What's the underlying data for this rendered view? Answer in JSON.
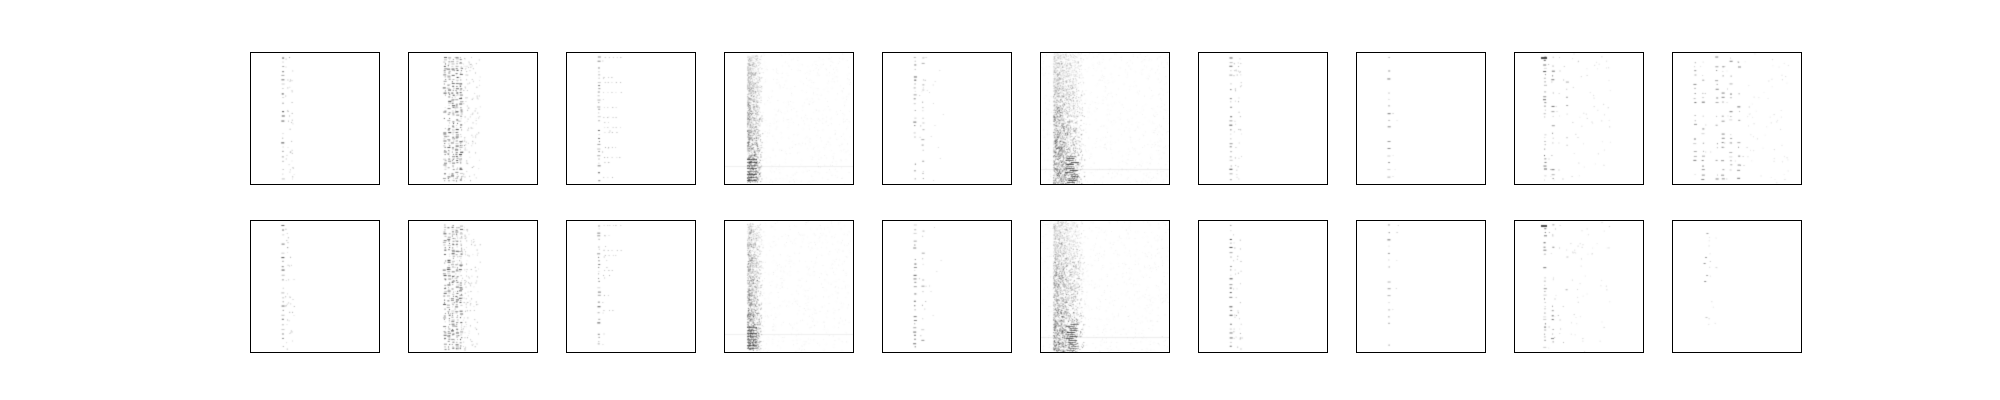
{
  "figure": {
    "rows": 2,
    "columns": 10,
    "background": "#ffffff",
    "frame_color": "#000000",
    "ink_color": "#000000",
    "panel_patterns": [
      [
        "sparse-single-column",
        "dense-multi-column",
        "sparse-column-with-trail",
        "diffuse-noise-band",
        "sparse-two-column",
        "diffuse-noise-band-heavy",
        "sparse-single-column",
        "very-sparse-single-column",
        "multi-column-scatter",
        "multi-column-scatter-wide"
      ],
      [
        "sparse-single-column",
        "dense-multi-column",
        "sparse-column-with-trail",
        "diffuse-noise-band",
        "sparse-two-column",
        "diffuse-noise-band-heavy",
        "sparse-single-column",
        "very-sparse-single-column",
        "multi-column-scatter",
        "very-sparse-scatter"
      ]
    ]
  }
}
